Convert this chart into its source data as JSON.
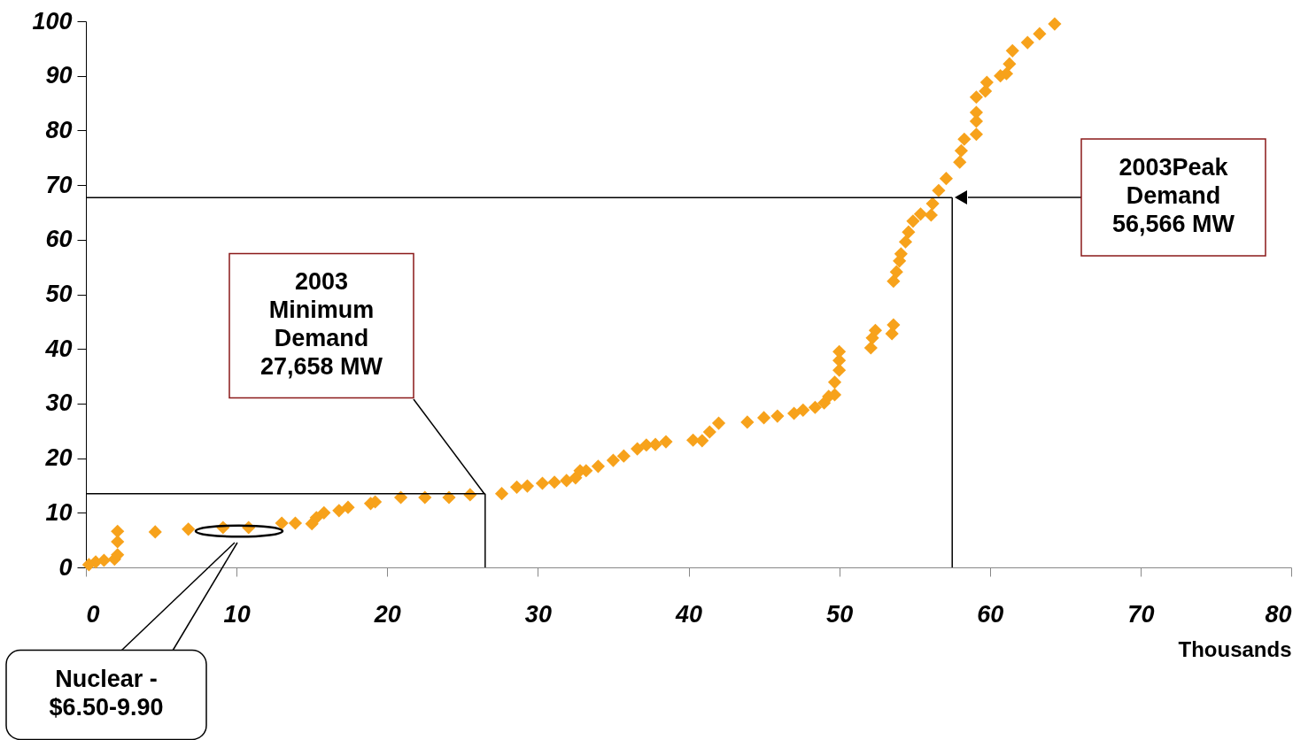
{
  "chart_data": {
    "type": "scatter",
    "xlabel": "Thousands",
    "xlim": [
      0,
      80
    ],
    "xticks": [
      0,
      10,
      20,
      30,
      40,
      50,
      60,
      70,
      80
    ],
    "ylim": [
      0,
      100
    ],
    "yticks": [
      0,
      10,
      20,
      30,
      40,
      50,
      60,
      70,
      80,
      90,
      100
    ],
    "grid": false,
    "marker": "diamond",
    "series": [
      {
        "color": "#f7a21b",
        "x": [
          0.2,
          0.65,
          1.2,
          1.9,
          2.1,
          2.1,
          2.1,
          4.6,
          6.8,
          9.1,
          10.8,
          13.0,
          13.9,
          15.0,
          15.3,
          15.8,
          16.8,
          17.4,
          18.9,
          19.2,
          20.9,
          22.5,
          24.1,
          25.5,
          27.6,
          28.6,
          29.3,
          30.3,
          31.1,
          31.9,
          32.5,
          32.8,
          33.2,
          34.0,
          35.0,
          35.7,
          36.6,
          37.2,
          37.8,
          38.5,
          40.3,
          40.9,
          41.4,
          42.0,
          43.9,
          45.0,
          45.9,
          47.0,
          47.6,
          48.4,
          49.0,
          49.3,
          49.7,
          49.7,
          50.0,
          50.0,
          50.0,
          52.1,
          52.2,
          52.4,
          53.5,
          53.6,
          53.6,
          53.8,
          54.0,
          54.1,
          54.4,
          54.6,
          54.9,
          55.4,
          56.1,
          56.2,
          56.6,
          57.1,
          58.0,
          58.1,
          58.3,
          59.1,
          59.1,
          59.1,
          59.1,
          59.7,
          59.8,
          60.7,
          61.1,
          61.3,
          61.5,
          62.5,
          63.3,
          64.3
        ],
        "values": [
          0.5,
          1.0,
          1.3,
          1.5,
          2.3,
          4.7,
          6.6,
          6.5,
          7.0,
          7.3,
          7.3,
          8.1,
          8.1,
          8.0,
          9.1,
          10.0,
          10.4,
          11.0,
          11.7,
          12.0,
          12.8,
          12.8,
          12.8,
          13.3,
          13.5,
          14.7,
          14.9,
          15.4,
          15.6,
          15.9,
          16.4,
          17.7,
          17.7,
          18.5,
          19.6,
          20.4,
          21.7,
          22.4,
          22.5,
          23.0,
          23.3,
          23.2,
          24.8,
          26.4,
          26.6,
          27.4,
          27.7,
          28.2,
          28.8,
          29.3,
          30.1,
          31.3,
          31.6,
          33.9,
          36.1,
          37.9,
          39.5,
          40.2,
          42.0,
          43.4,
          42.8,
          44.4,
          52.4,
          54.1,
          56.1,
          57.4,
          59.6,
          61.4,
          63.4,
          64.7,
          64.5,
          66.6,
          69.0,
          71.2,
          74.2,
          76.3,
          78.4,
          79.3,
          81.7,
          83.3,
          86.1,
          87.2,
          88.8,
          90.0,
          90.4,
          92.2,
          94.6,
          96.1,
          97.7,
          99.5
        ]
      }
    ],
    "ref_lines": [
      {
        "axis": "y",
        "value": 13.5,
        "color": "#000000"
      },
      {
        "axis": "x",
        "value": 26.5,
        "color": "#000000"
      },
      {
        "axis": "y",
        "value": 67.7,
        "color": "#000000"
      },
      {
        "axis": "x",
        "value": 57.5,
        "color": "#000000"
      }
    ],
    "annotations": [
      "2003\nMinimum\nDemand\n27,658 MW",
      "2003Peak\nDemand\n56,566 MW",
      "Nuclear -\n$6.50-9.90"
    ]
  }
}
